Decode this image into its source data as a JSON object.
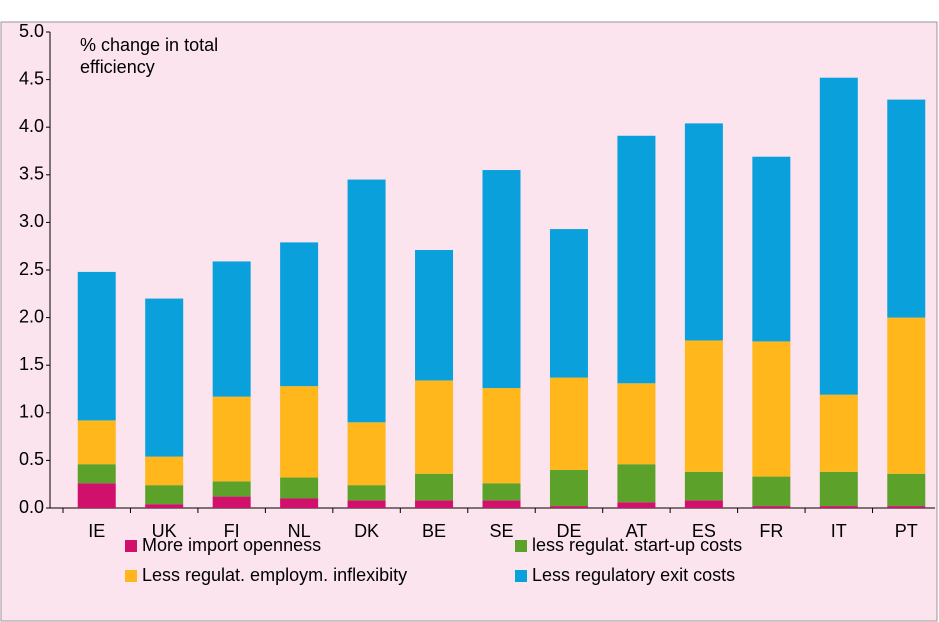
{
  "chart_data": {
    "type": "stacked_bar",
    "annotation": "% change in total efficiency",
    "categories": [
      "IE",
      "UK",
      "FI",
      "NL",
      "DK",
      "BE",
      "SE",
      "DE",
      "AT",
      "ES",
      "FR",
      "IT",
      "PT"
    ],
    "series": [
      {
        "name": "More import openness",
        "color": "#d0106a",
        "values": [
          0.26,
          0.04,
          0.12,
          0.1,
          0.08,
          0.08,
          0.08,
          0.02,
          0.06,
          0.08,
          0.02,
          0.02,
          0.02
        ]
      },
      {
        "name": "less regulat. start-up costs",
        "color": "#5ca22a",
        "values": [
          0.2,
          0.2,
          0.16,
          0.22,
          0.16,
          0.28,
          0.18,
          0.38,
          0.4,
          0.3,
          0.31,
          0.36,
          0.34
        ]
      },
      {
        "name": "Less regulat. employm. inflexibity",
        "color": "#ffb71b",
        "values": [
          0.46,
          0.3,
          0.89,
          0.96,
          0.66,
          0.98,
          1.0,
          0.97,
          0.85,
          1.38,
          1.42,
          0.81,
          1.64
        ]
      },
      {
        "name": "Less regulatory exit costs",
        "color": "#0aa0dc",
        "values": [
          1.56,
          1.66,
          1.42,
          1.51,
          2.55,
          1.37,
          2.29,
          1.56,
          2.6,
          2.28,
          1.94,
          3.33,
          2.29
        ]
      }
    ],
    "ylim": [
      0,
      5
    ],
    "yticks": [
      {
        "value": 0,
        "label": "0.0"
      },
      {
        "value": 0.5,
        "label": "0.5"
      },
      {
        "value": 1,
        "label": "1.0"
      },
      {
        "value": 1.5,
        "label": "1.5"
      },
      {
        "value": 2,
        "label": "2.0"
      },
      {
        "value": 2.5,
        "label": "2.5"
      },
      {
        "value": 3,
        "label": "3.0"
      },
      {
        "value": 3.5,
        "label": "3.5"
      },
      {
        "value": 4,
        "label": "4.0"
      },
      {
        "value": 4.5,
        "label": "4.5"
      },
      {
        "value": 5,
        "label": "5.0"
      }
    ],
    "legend": "bottom"
  }
}
